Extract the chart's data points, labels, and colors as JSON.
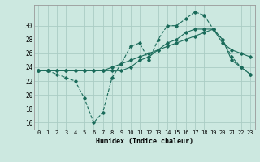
{
  "xlabel": "Humidex (Indice chaleur)",
  "bg_color": "#cce8e0",
  "grid_color": "#aaccc4",
  "line_color": "#1a6b5a",
  "ylim": [
    15,
    33
  ],
  "xlim": [
    -0.5,
    23.5
  ],
  "yticks": [
    16,
    18,
    20,
    22,
    24,
    26,
    28,
    30
  ],
  "xticks": [
    0,
    1,
    2,
    3,
    4,
    5,
    6,
    7,
    8,
    9,
    10,
    11,
    12,
    13,
    14,
    15,
    16,
    17,
    18,
    19,
    20,
    21,
    22,
    23
  ],
  "line1_x": [
    0,
    1,
    2,
    3,
    4,
    5,
    6,
    7,
    8,
    9,
    10,
    11,
    12,
    13,
    14,
    15,
    16,
    17,
    18,
    19,
    20,
    21,
    22,
    23
  ],
  "line1_y": [
    23.5,
    23.5,
    23.0,
    22.5,
    22.0,
    19.5,
    16.0,
    17.5,
    22.5,
    24.5,
    27.0,
    27.5,
    25.0,
    28.0,
    30.0,
    30.0,
    31.0,
    32.0,
    31.5,
    29.5,
    28.0,
    25.5,
    24.0,
    23.0
  ],
  "line2_x": [
    0,
    1,
    2,
    3,
    4,
    5,
    6,
    7,
    8,
    9,
    10,
    11,
    12,
    13,
    14,
    15,
    16,
    17,
    18,
    19,
    20,
    21,
    22,
    23
  ],
  "line2_y": [
    23.5,
    23.5,
    23.5,
    23.5,
    23.5,
    23.5,
    23.5,
    23.5,
    23.5,
    23.5,
    24.0,
    25.0,
    25.5,
    26.5,
    27.5,
    28.0,
    29.0,
    29.5,
    29.5,
    29.5,
    28.0,
    25.0,
    24.0,
    23.0
  ],
  "line3_x": [
    0,
    1,
    2,
    3,
    4,
    5,
    6,
    7,
    8,
    9,
    10,
    11,
    12,
    13,
    14,
    15,
    16,
    17,
    18,
    19,
    20,
    21,
    22,
    23
  ],
  "line3_y": [
    23.5,
    23.5,
    23.5,
    23.5,
    23.5,
    23.5,
    23.5,
    23.5,
    24.0,
    24.5,
    25.0,
    25.5,
    26.0,
    26.5,
    27.0,
    27.5,
    28.0,
    28.5,
    29.0,
    29.5,
    27.5,
    26.5,
    26.0,
    25.5
  ]
}
